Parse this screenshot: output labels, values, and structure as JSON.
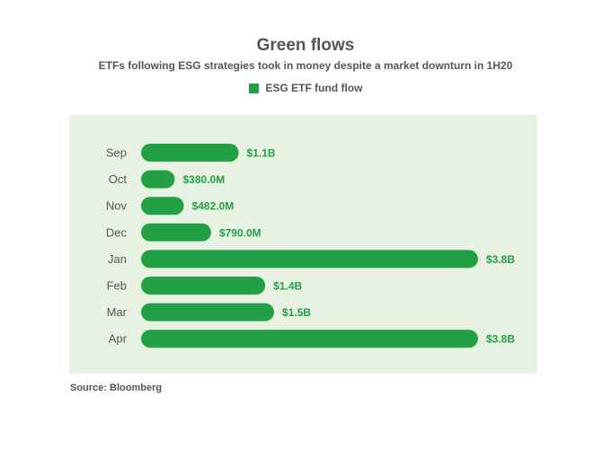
{
  "title": "Green flows",
  "subtitle": "ETFs following ESG strategies took in money despite a market downturn in 1H20",
  "source": "Source: Bloomberg",
  "colors": {
    "bar": "#22a046",
    "label": "#22a046",
    "plot_bg": "#e8f2e3",
    "text": "#555555"
  },
  "chart_data": {
    "type": "bar",
    "orientation": "horizontal",
    "title": "Green flows",
    "subtitle": "ETFs following ESG strategies took in money despite a market downturn in 1H20",
    "categories": [
      "Sep",
      "Oct",
      "Nov",
      "Dec",
      "Jan",
      "Feb",
      "Mar",
      "Apr"
    ],
    "series": [
      {
        "name": "ESG ETF fund flow",
        "values": [
          1.1,
          0.38,
          0.482,
          0.79,
          3.8,
          1.4,
          1.5,
          3.8
        ],
        "labels": [
          "$1.1B",
          "$380.0M",
          "$482.0M",
          "$790.0M",
          "$3.8B",
          "$1.4B",
          "$1.5B",
          "$3.8B"
        ]
      }
    ],
    "unit": "USD billions",
    "xlim": [
      0,
      3.8
    ],
    "grid": false,
    "legend": "top-center"
  }
}
